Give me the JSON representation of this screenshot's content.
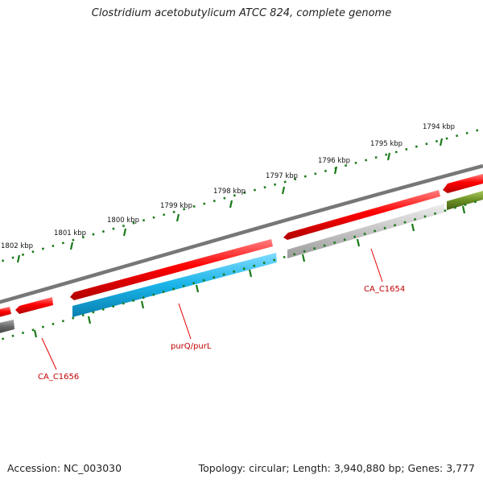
{
  "title": "Clostridium acetobutylicum ATCC 824, complete genome",
  "footer": {
    "accession": "Accession: NC_003030",
    "info": "Topology: circular; Length: 3,940,880 bp; Genes: 3,777"
  },
  "ruler": {
    "labels": [
      "1794 kbp",
      "1795 kbp",
      "1796 kbp",
      "1797 kbp",
      "1798 kbp",
      "1799 kbp",
      "1800 kbp",
      "1801 kbp",
      "1802 kbp"
    ]
  },
  "genes": [
    {
      "label": "CA_C1654",
      "strand": "reverse",
      "track": "reverse",
      "color": "#c8c8c8"
    },
    {
      "label": "purQ/purL",
      "strand": "reverse",
      "track": "reverse",
      "color": "#19b4e8"
    },
    {
      "label": "CA_C1656",
      "strand": "forward",
      "track": "forward",
      "color": "#ff0000"
    }
  ],
  "colors": {
    "forward": "#ff0000",
    "reverse_gray": "#c8c8c8",
    "reverse_blue": "#19b4e8",
    "reverse_green": "#6b8e23",
    "reverse_dark": "#666666",
    "backbone": "#777777",
    "ticks": "#1a7a1a",
    "label": "#c00000"
  }
}
